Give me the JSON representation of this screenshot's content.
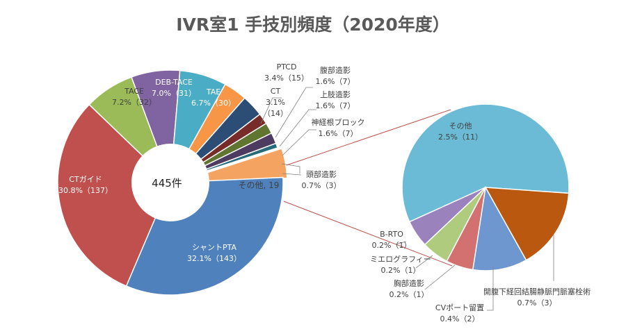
{
  "chart_data": {
    "type": "pie",
    "title": "IVR室1 手技別頻度（2020年度）",
    "total_label": "445件",
    "main_pie": {
      "slices": [
        {
          "name": "その他",
          "label": "その他, 19",
          "value": 19,
          "color": "#F4A460"
        },
        {
          "name": "シャントPTA",
          "pct": "32.1%",
          "count": "143",
          "value": 143,
          "color": "#4F81BD"
        },
        {
          "name": "CTガイド",
          "pct": "30.8%",
          "count": "137",
          "value": 137,
          "color": "#C0504D"
        },
        {
          "name": "TACE",
          "pct": "7.2%",
          "count": "32",
          "value": 32,
          "color": "#9BBB59"
        },
        {
          "name": "DEB-TACE",
          "pct": "7.0%",
          "count": "31",
          "value": 31,
          "color": "#8064A2"
        },
        {
          "name": "TAE",
          "pct": "6.7%",
          "count": "30",
          "value": 30,
          "color": "#4BACC6"
        },
        {
          "name": "PTCD",
          "pct": "3.4%",
          "count": "15",
          "value": 15,
          "color": "#F79646"
        },
        {
          "name": "CT",
          "pct": "3.1%",
          "count": "14",
          "value": 14,
          "color": "#2C4D75"
        },
        {
          "name": "腹部造影",
          "pct": "1.6%",
          "count": "7",
          "value": 7,
          "color": "#772C2A"
        },
        {
          "name": "上肢造影",
          "pct": "1.6%",
          "count": "7",
          "value": 7,
          "color": "#5F7530"
        },
        {
          "name": "神経根ブロック",
          "pct": "1.6%",
          "count": "7",
          "value": 7,
          "color": "#4D3B62"
        },
        {
          "name": "頭部造影",
          "pct": "0.7%",
          "count": "3",
          "value": 3,
          "color": "#276A7C"
        }
      ]
    },
    "sub_pie": {
      "slices": [
        {
          "name": "その他",
          "pct": "2.5%",
          "count": "11",
          "value": 11,
          "color": "#6BBBD6"
        },
        {
          "name": "開腹下経回結腸静脈門脈塞栓術",
          "pct": "0.7%",
          "count": "3",
          "value": 3,
          "color": "#B9580E"
        },
        {
          "name": "CVポート留置",
          "pct": "0.4%",
          "count": "2",
          "value": 2,
          "color": "#6F97CF"
        },
        {
          "name": "胸部造影",
          "pct": "0.2%",
          "count": "1",
          "value": 1,
          "color": "#D2716F"
        },
        {
          "name": "ミエログラフィー",
          "pct": "0.2%",
          "count": "1",
          "value": 1,
          "color": "#AFCB7D"
        },
        {
          "name": "B-RTO",
          "pct": "0.2%",
          "count": "1",
          "value": 1,
          "color": "#9A82BD"
        }
      ]
    }
  }
}
